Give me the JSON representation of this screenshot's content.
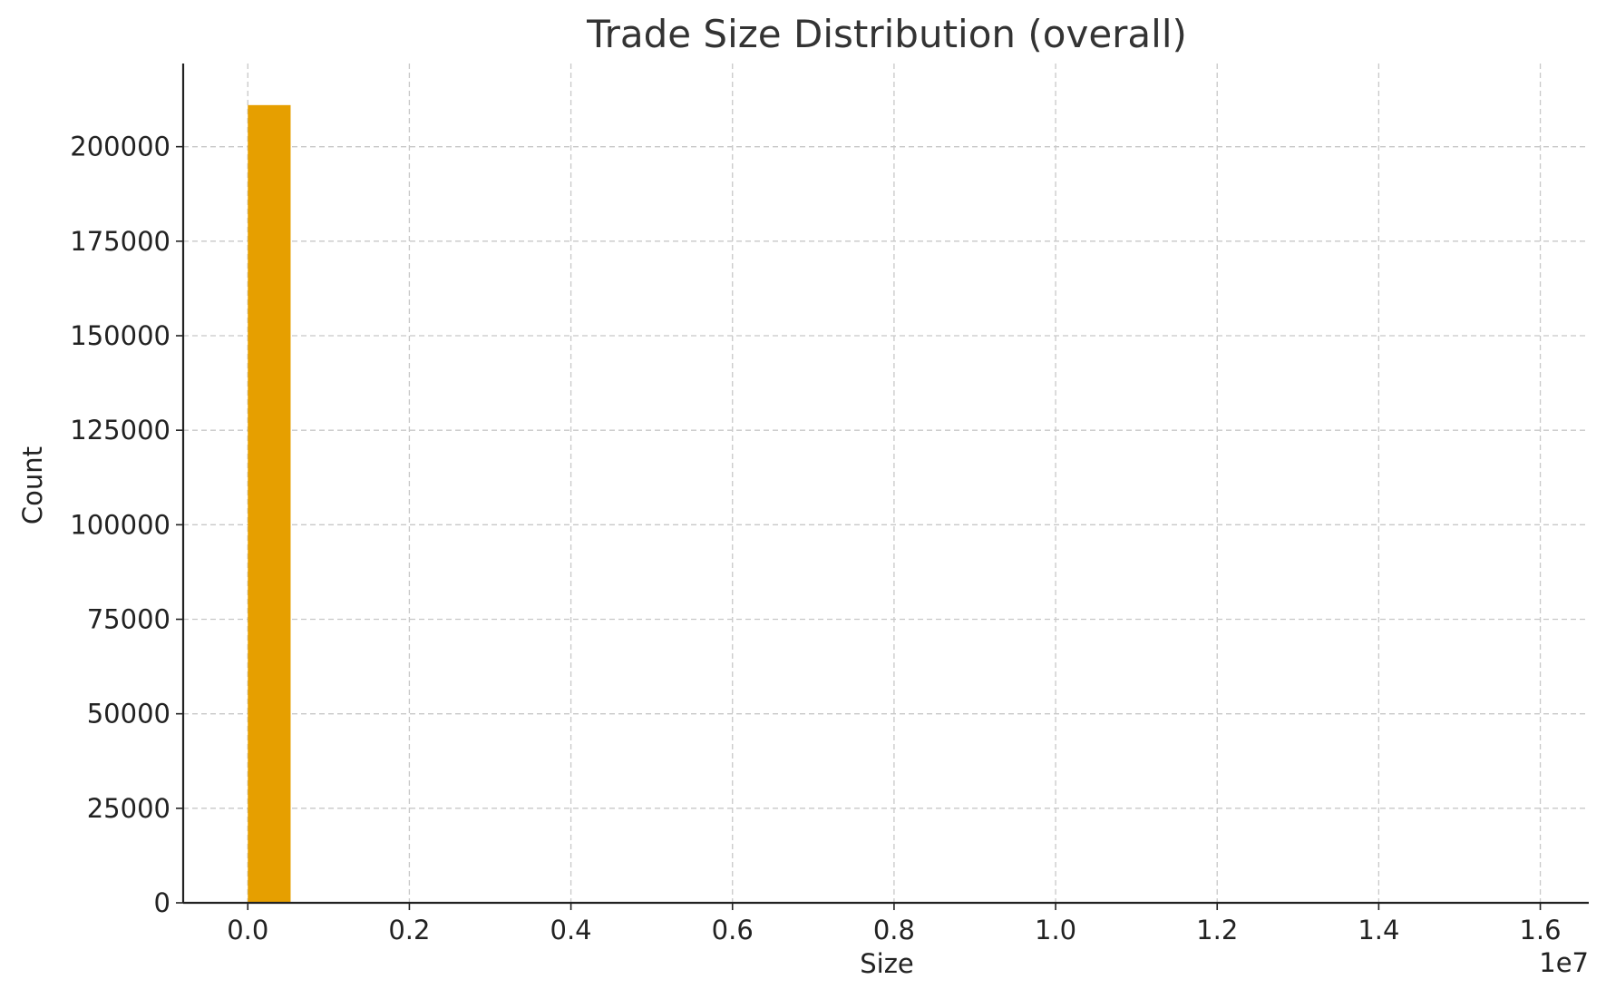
{
  "chart_data": {
    "type": "bar",
    "title": "Trade Size Distribution (overall)",
    "xlabel": "Size",
    "ylabel": "Count",
    "x_offset_label": "1e7",
    "x_multiplier": 10000000,
    "xlim": [
      -0.08,
      1.66
    ],
    "ylim": [
      0,
      222000
    ],
    "grid": true,
    "bar_color": "#E69F00",
    "x_ticks": [
      0.0,
      0.2,
      0.4,
      0.6,
      0.8,
      1.0,
      1.2,
      1.4,
      1.6
    ],
    "x_tick_labels": [
      "0.0",
      "0.2",
      "0.4",
      "0.6",
      "0.8",
      "1.0",
      "1.2",
      "1.4",
      "1.6"
    ],
    "y_ticks": [
      0,
      25000,
      50000,
      75000,
      100000,
      125000,
      150000,
      175000,
      200000
    ],
    "y_tick_labels": [
      "0",
      "25000",
      "50000",
      "75000",
      "100000",
      "125000",
      "150000",
      "175000",
      "200000"
    ],
    "bins": [
      {
        "x0": 0.0,
        "x1": 0.053,
        "count": 211000
      }
    ]
  }
}
